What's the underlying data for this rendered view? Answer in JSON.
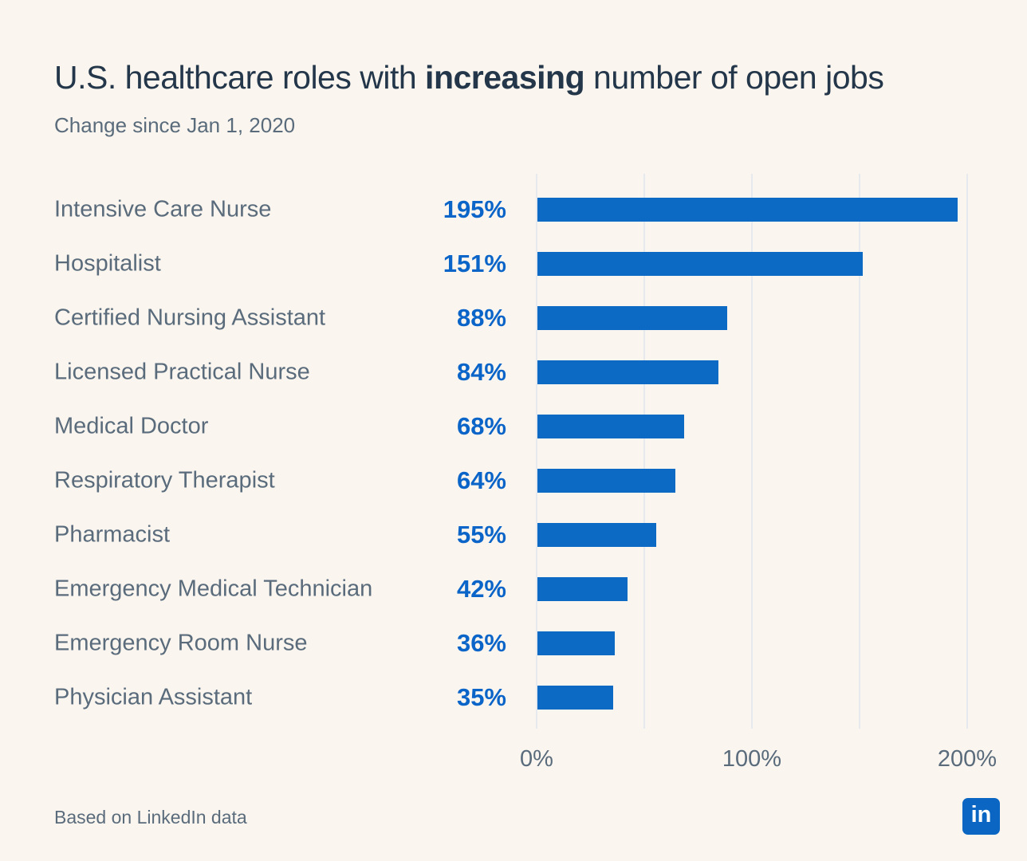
{
  "header": {
    "title_prefix": "U.S. healthcare roles with ",
    "title_highlight": "increasing",
    "title_suffix": " number of open jobs",
    "subtitle": "Change since Jan 1, 2020"
  },
  "footer": {
    "note": "Based on LinkedIn data",
    "linkedin_logo_text": "in"
  },
  "colors": {
    "background": "#FAF6EF",
    "title_text": "#24374A",
    "secondary_text": "#5A6B7C",
    "bar_fill": "#0D6AC4",
    "value_text": "#0B64C8",
    "gridline": "#E6E9ED",
    "linkedin_brand": "#0A66C2"
  },
  "chart_data": {
    "type": "bar",
    "orientation": "horizontal",
    "title": "U.S. healthcare roles with increasing number of open jobs",
    "subtitle": "Change since Jan 1, 2020",
    "categories": [
      "Intensive Care Nurse",
      "Hospitalist",
      "Certified Nursing Assistant",
      "Licensed Practical Nurse",
      "Medical Doctor",
      "Respiratory Therapist",
      "Pharmacist",
      "Emergency Medical Technician",
      "Emergency Room Nurse",
      "Physician Assistant"
    ],
    "values": [
      195,
      151,
      88,
      84,
      68,
      64,
      55,
      42,
      36,
      35
    ],
    "value_labels": [
      "195%",
      "151%",
      "88%",
      "84%",
      "68%",
      "64%",
      "55%",
      "42%",
      "36%",
      "35%"
    ],
    "xlabel": "",
    "ylabel": "",
    "xlim": [
      0,
      200
    ],
    "x_ticks": [
      {
        "value": 0,
        "label": "0%"
      },
      {
        "value": 50,
        "label": ""
      },
      {
        "value": 100,
        "label": "100%"
      },
      {
        "value": 150,
        "label": ""
      },
      {
        "value": 200,
        "label": "200%"
      }
    ],
    "grid": "vertical",
    "legend": "none"
  }
}
